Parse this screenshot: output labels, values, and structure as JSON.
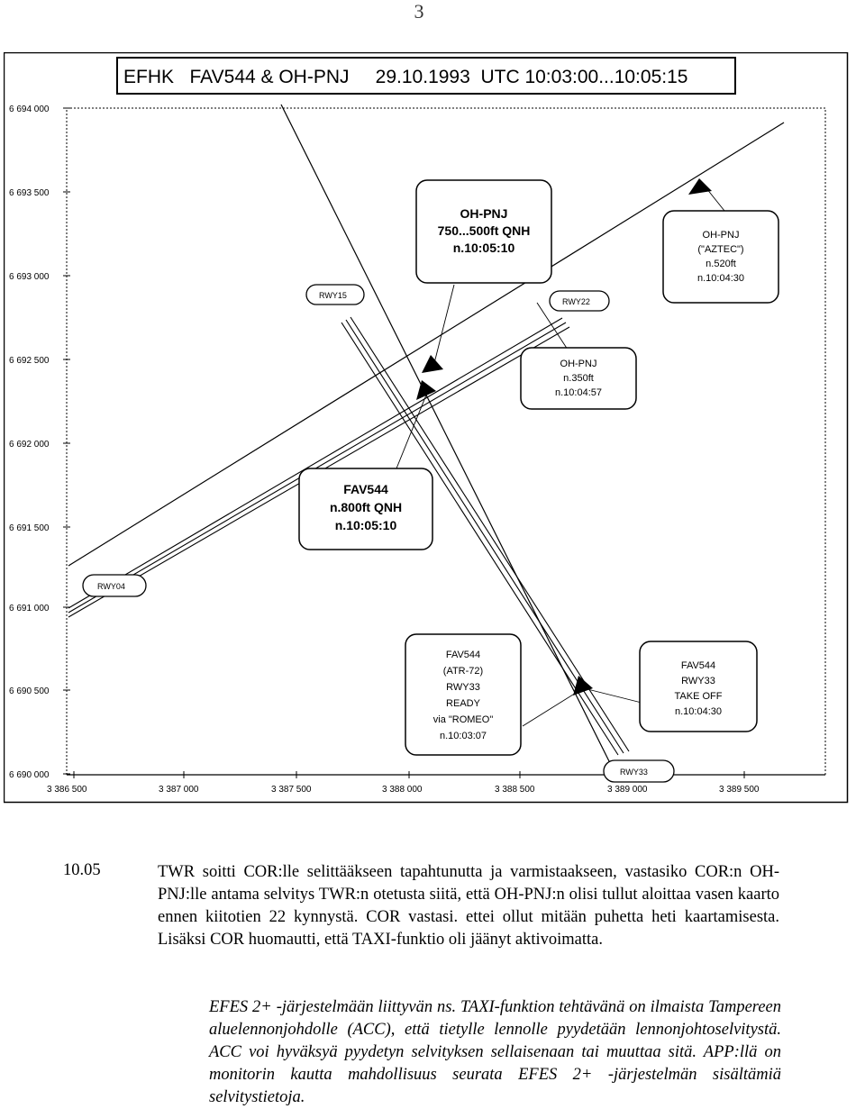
{
  "page_number": "3",
  "figure": {
    "title": "EFHK   FAV544 & OH-PNJ     29.10.1993  UTC 10:03:00...10:05:15",
    "y_ticks": [
      "6 694 000",
      "6 693 500",
      "6 693 000",
      "6 692 500",
      "6 692 000",
      "6 691 500",
      "6 691 000",
      "6 690 500",
      "6 690 000"
    ],
    "x_ticks": [
      "3 386 500",
      "3 387 000",
      "3 387 500",
      "3 388 000",
      "3 388 500",
      "3 389 000",
      "3 389 500"
    ],
    "runway_labels": {
      "rwy15": "RWY15",
      "rwy22": "RWY22",
      "rwy04": "RWY04",
      "rwy33": "RWY33"
    },
    "callouts": {
      "ohpnj_750": [
        "OH-PNJ",
        "750...500ft QNH",
        "n.10:05:10"
      ],
      "ohpnj_aztec": [
        "OH-PNJ",
        "(\"AZTEC\")",
        "n.520ft",
        "n.10:04:30"
      ],
      "ohpnj_350": [
        "OH-PNJ",
        "n.350ft",
        "n.10:04:57"
      ],
      "fav544_800": [
        "FAV544",
        "n.800ft QNH",
        "n.10:05:10"
      ],
      "fav544_ready": [
        "FAV544",
        "(ATR-72)",
        "RWY33",
        "READY",
        "via \"ROMEO\"",
        "n.10:03:07"
      ],
      "fav544_takeoff": [
        "FAV544",
        "RWY33",
        "TAKE OFF",
        "n.10:04:30"
      ]
    }
  },
  "paragraph": {
    "number": "10.05",
    "text": "TWR soitti COR:lle selittääkseen tapahtunutta ja varmistaakseen, vastasiko COR:n OH-PNJ:lle antama selvitys TWR:n otetusta siitä, että OH-PNJ:n olisi tullut aloittaa vasen kaarto ennen kiitotien 22 kynnystä. COR vastasi. ettei ollut mitään puhetta heti kaartamisesta. Lisäksi COR huomautti, että TAXI-funktio oli jäänyt aktivoimatta."
  },
  "note": {
    "text": "EFES 2+ -järjestelmään liittyvän ns. TAXI-funktion tehtävänä on ilmaista Tampereen aluelennonjohdolle (ACC), että tietylle lennolle pyydetään lennonjohtoselvitystä. ACC voi hyväksyä pyydetyn selvityksen sellaisenaan tai muuttaa sitä. APP:llä on monitorin kautta mahdollisuus seurata EFES 2+ -järjestelmän sisältämiä selvitystietoja."
  }
}
